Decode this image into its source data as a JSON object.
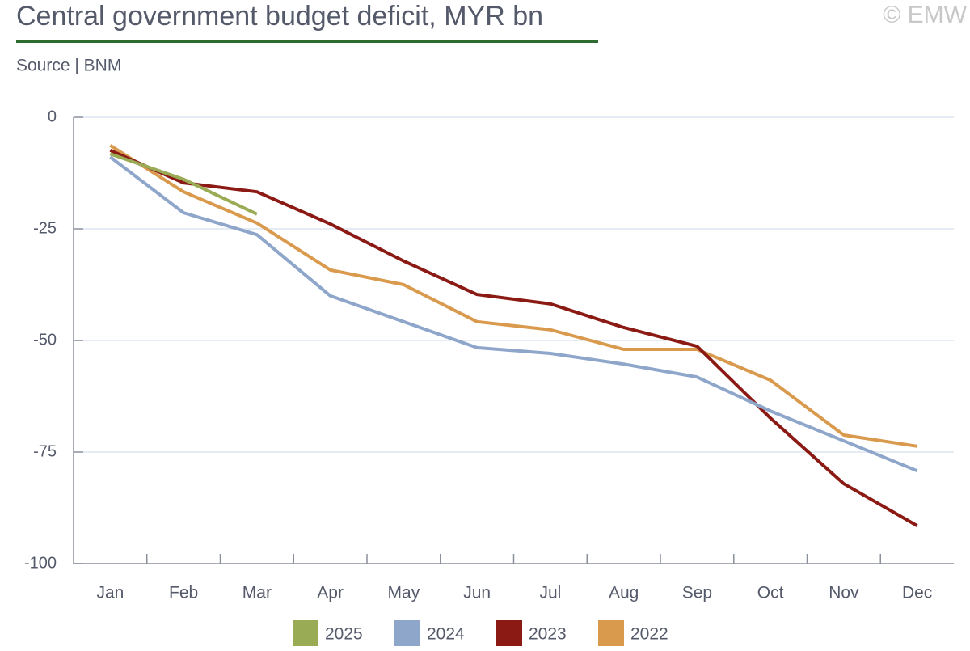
{
  "chart_data": {
    "type": "line",
    "title": "Central government budget deficit, MYR bn",
    "subtitle": "Source | BNM",
    "copyright": "© EMW",
    "categories": [
      "Jan",
      "Feb",
      "Mar",
      "Apr",
      "May",
      "Jun",
      "Jul",
      "Aug",
      "Sep",
      "Oct",
      "Nov",
      "Dec"
    ],
    "series": [
      {
        "name": "2025",
        "color": "#9aab55",
        "values": [
          -8.2,
          -13.9,
          -21.7,
          null,
          null,
          null,
          null,
          null,
          null,
          null,
          null,
          null
        ]
      },
      {
        "name": "2024",
        "color": "#8fa6cb",
        "values": [
          -8.9,
          -21.4,
          -26.3,
          -40.0,
          -45.8,
          -51.6,
          -52.9,
          -55.3,
          -58.2,
          -65.8,
          -72.5,
          -79.2
        ]
      },
      {
        "name": "2023",
        "color": "#8b1a14",
        "values": [
          -7.4,
          -14.7,
          -16.7,
          -23.9,
          -32.2,
          -39.7,
          -41.8,
          -47.1,
          -51.3,
          -67.4,
          -82.1,
          -91.5
        ]
      },
      {
        "name": "2022",
        "color": "#d99a4e",
        "values": [
          -6.3,
          -16.7,
          -23.7,
          -34.2,
          -37.5,
          -45.8,
          -47.6,
          -52.0,
          -52.0,
          -58.9,
          -71.2,
          -73.7
        ]
      }
    ],
    "ylim": [
      -100,
      0
    ],
    "yticks": [
      0,
      -25,
      -50,
      -75,
      -100
    ],
    "grid": true,
    "legend": "bottom"
  }
}
